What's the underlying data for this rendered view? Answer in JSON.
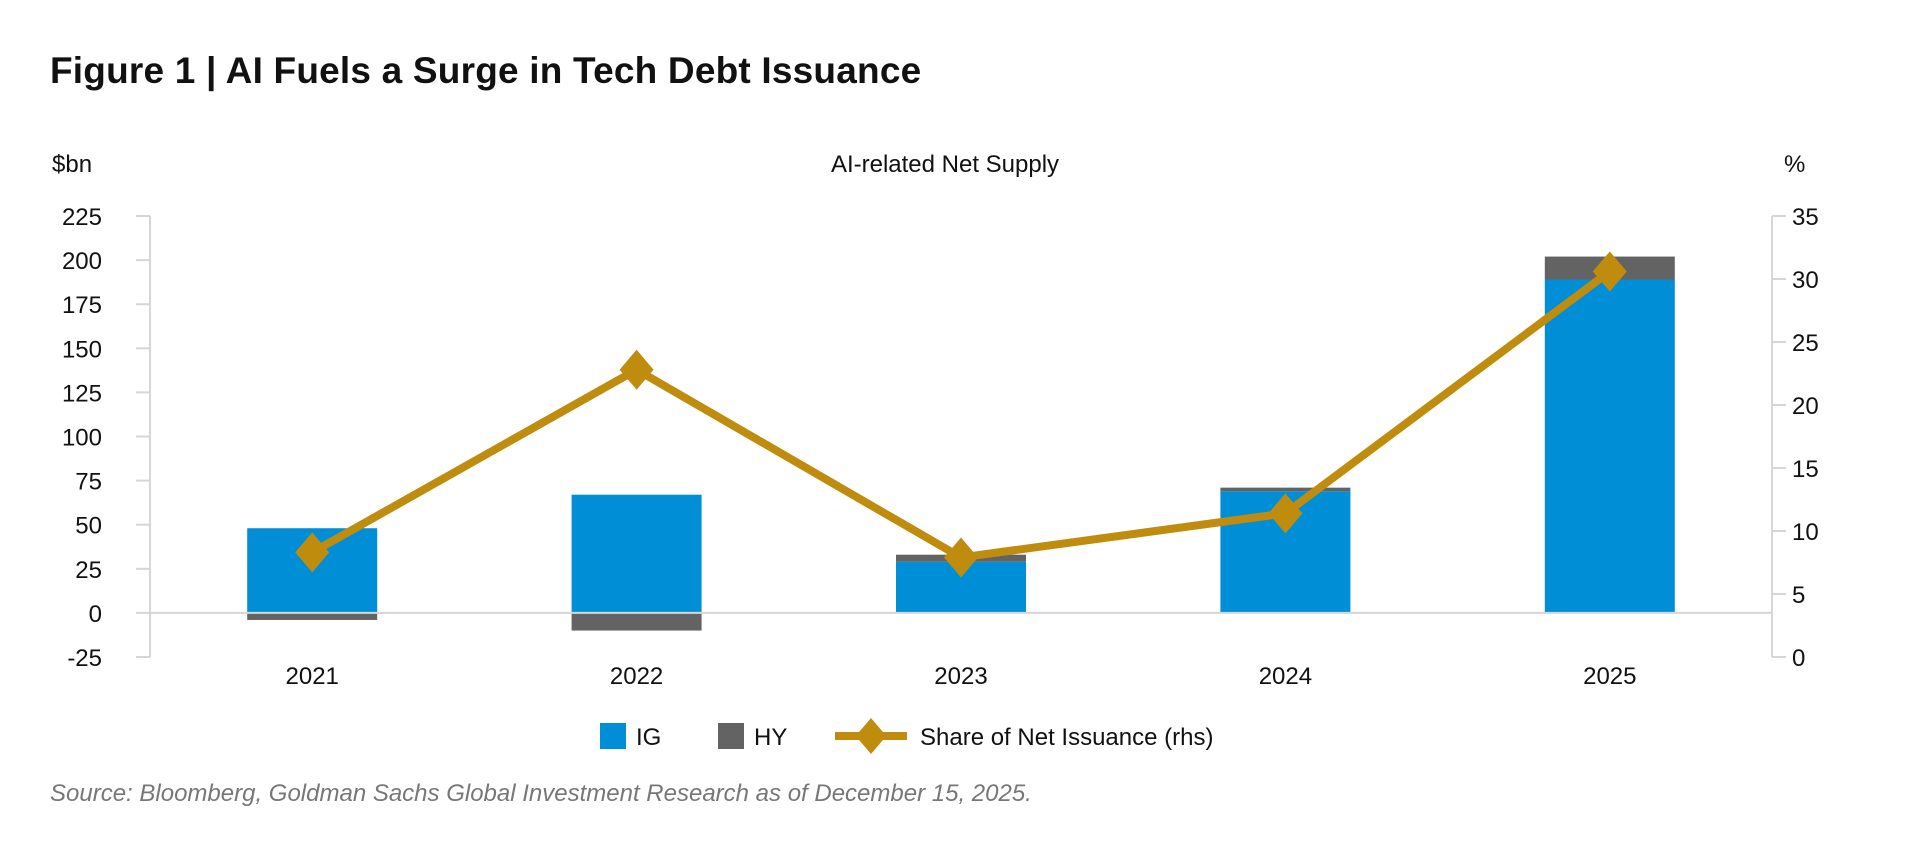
{
  "figure_title": "Figure 1 | AI Fuels a Surge in Tech Debt Issuance",
  "source": "Source: Bloomberg, Goldman Sachs Global Investment Research as of December 15, 2025.",
  "chart_data": {
    "type": "bar",
    "stacked": true,
    "title": "AI-related Net Supply",
    "ylabel": "$bn",
    "y2label": "%",
    "categories": [
      "2021",
      "2022",
      "2023",
      "2024",
      "2025"
    ],
    "ylim": [
      -25,
      225
    ],
    "yticks": [
      -25,
      0,
      25,
      50,
      75,
      100,
      125,
      150,
      175,
      200,
      225
    ],
    "y2lim": [
      0,
      35
    ],
    "y2ticks": [
      0,
      5,
      10,
      15,
      20,
      25,
      30,
      35
    ],
    "grid": false,
    "legend_position": "bottom",
    "series": [
      {
        "name": "IG",
        "type": "bar",
        "axis": "left",
        "color": "#008fd6",
        "values": [
          48,
          67,
          29,
          69,
          189
        ]
      },
      {
        "name": "HY",
        "type": "bar",
        "axis": "left",
        "color": "#636363",
        "values": [
          -4,
          -10,
          4,
          2,
          13
        ]
      },
      {
        "name": "Share of Net Issuance (rhs)",
        "type": "line",
        "axis": "right",
        "marker": "diamond",
        "color": "#bf8c0e",
        "values": [
          8.3,
          22.8,
          7.9,
          11.4,
          30.6
        ]
      }
    ]
  }
}
